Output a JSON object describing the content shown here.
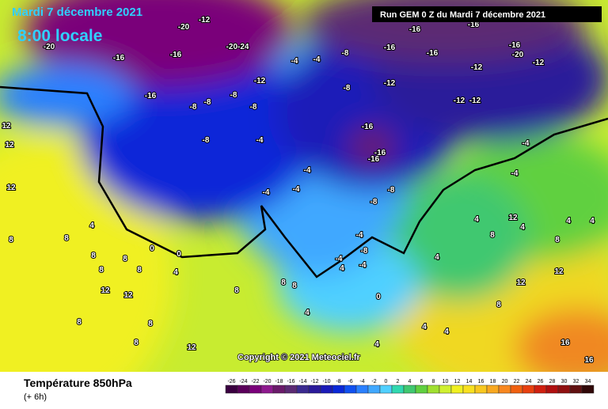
{
  "header": {
    "date": "Mardi 7 décembre 2021",
    "time": "8:00 locale",
    "run": "Run GEM 0 Z du Mardi 7 décembre 2021"
  },
  "copyright": "Copyright © 2021 Meteociel.fr",
  "footer": {
    "title": "Température 850hPa",
    "step": "(+ 6h)"
  },
  "colorbar": {
    "values": [
      -26,
      -24,
      -22,
      -20,
      -18,
      -16,
      -14,
      -12,
      -10,
      -8,
      -6,
      -4,
      -2,
      0,
      2,
      4,
      6,
      8,
      10,
      12,
      14,
      16,
      18,
      20,
      22,
      24,
      26,
      28,
      30,
      32,
      34
    ],
    "colors": [
      "#3a0040",
      "#5a005a",
      "#7a007a",
      "#8e1a8e",
      "#6a1a6a",
      "#5b2a73",
      "#3b2a90",
      "#2a1a9a",
      "#1a1ab8",
      "#0a28d8",
      "#1050f0",
      "#2a80ff",
      "#40a8ff",
      "#50d0ff",
      "#30d8b0",
      "#40c870",
      "#60d040",
      "#a0e030",
      "#d0f030",
      "#f0f020",
      "#f8e020",
      "#f8c820",
      "#f8a820",
      "#f88820",
      "#f06010",
      "#e84010",
      "#d02010",
      "#b01010",
      "#901010",
      "#601010",
      "#300808"
    ]
  },
  "map_labels": [
    "-20",
    "-12",
    "-20",
    "-16",
    "-16",
    "-20-24",
    "-4",
    "-4",
    "-8",
    "-16",
    "-16",
    "-16",
    "-16",
    "-16",
    "-20",
    "-12",
    "-12",
    "-12",
    "-12",
    "-12",
    "-16",
    "-8",
    "-8",
    "-8",
    "-8",
    "-12",
    "-8",
    "-16",
    "-16",
    "-16",
    "-8",
    "-4",
    "-4",
    "-4",
    "-4",
    "-8",
    "-8",
    "-4",
    "-4",
    "4",
    "4",
    "4",
    "4",
    "8",
    "12",
    "12",
    "12",
    "8",
    "0",
    "0",
    "4",
    "4",
    "8",
    "8",
    "8",
    "8",
    "8",
    "12",
    "12",
    "8",
    "8",
    "8",
    "4",
    "4",
    "0",
    "-4",
    "-4",
    "-4",
    "-8",
    "4",
    "4",
    "4",
    "8",
    "12",
    "12",
    "12",
    "8",
    "12",
    "8",
    "16",
    "16",
    "8",
    "8",
    "4"
  ]
}
